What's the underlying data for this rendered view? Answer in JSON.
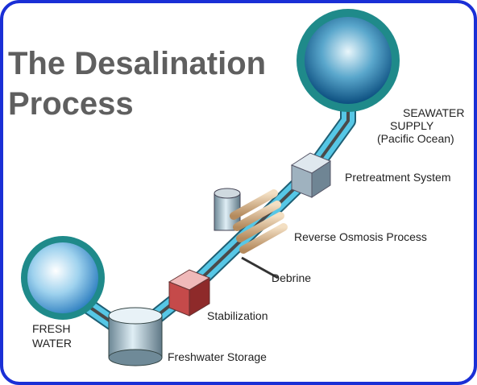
{
  "title": [
    "The Desalination",
    "Process"
  ],
  "nodes": [
    {
      "label": [
        "SEAWATER",
        "SUPPLY",
        "(Pacific Ocean)"
      ]
    },
    {
      "label": [
        "Pretreatment System"
      ]
    },
    {
      "label": [
        "Reverse Osmosis Process"
      ]
    },
    {
      "label": [
        "Debrine"
      ]
    },
    {
      "label": [
        "Stabilization"
      ]
    },
    {
      "label": [
        "Freshwater Storage"
      ]
    },
    {
      "label": [
        "FRESH",
        "WATER"
      ]
    }
  ]
}
